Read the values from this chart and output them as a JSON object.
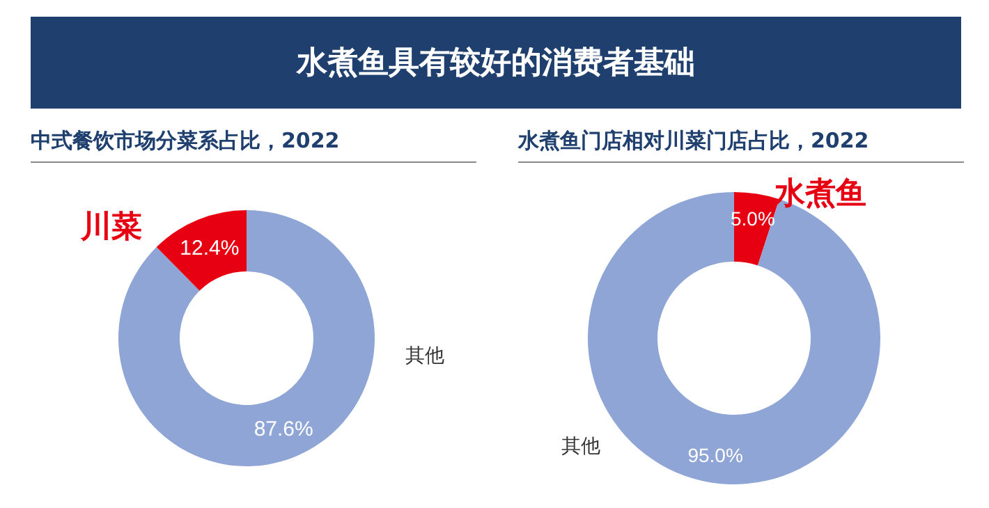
{
  "chart_data": [
    {
      "type": "donut",
      "title": "水煮鱼具有较好的消费者基础",
      "subtitle": "中式餐饮市场分菜系占比，2022",
      "categories": [
        "其他",
        "川菜"
      ],
      "values": [
        87.6,
        12.4
      ],
      "colors": [
        "#8ea5d6",
        "#e60012"
      ],
      "value_labels": [
        "87.6%",
        "12.4%"
      ]
    },
    {
      "type": "donut",
      "subtitle": "水煮鱼门店相对川菜门店占比，2022",
      "categories": [
        "水煮鱼",
        "其他"
      ],
      "values": [
        5.0,
        95.0
      ],
      "colors": [
        "#e60012",
        "#8ea5d6"
      ],
      "value_labels": [
        "5.0%",
        "95.0%"
      ]
    }
  ]
}
